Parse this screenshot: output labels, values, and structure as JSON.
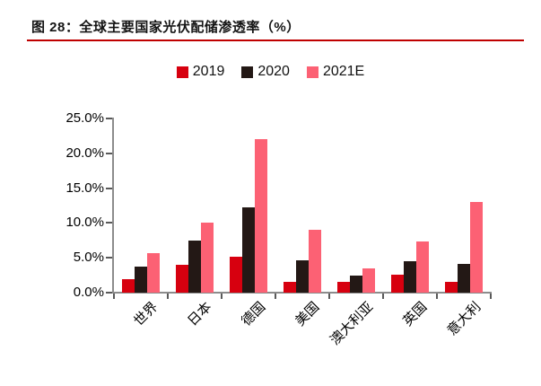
{
  "figure": {
    "title": "图 28：全球主要国家光伏配储渗透率（%）"
  },
  "colors": {
    "title_underline": "#bf0000",
    "axis": "#8c8c8c",
    "tick": "#595959",
    "text": "#000000"
  },
  "chart_data": {
    "type": "bar",
    "title": "全球主要国家光伏配储渗透率（%）",
    "categories": [
      "世界",
      "日本",
      "德国",
      "美国",
      "澳大利亚",
      "英国",
      "意大利"
    ],
    "series": [
      {
        "name": "2019",
        "color": "#d7000f",
        "values": [
          2.0,
          4.0,
          5.1,
          1.5,
          1.5,
          2.6,
          1.5
        ]
      },
      {
        "name": "2020",
        "color": "#231815",
        "values": [
          3.8,
          7.5,
          12.3,
          4.6,
          2.5,
          4.5,
          4.1
        ]
      },
      {
        "name": "2021E",
        "color": "#fc6174",
        "values": [
          5.7,
          10.0,
          22.1,
          9.0,
          3.5,
          7.3,
          13.0
        ]
      }
    ],
    "xlabel": "",
    "ylabel": "",
    "ylim": [
      0,
      25
    ],
    "ytick_labels": [
      "0.0%",
      "5.0%",
      "10.0%",
      "15.0%",
      "20.0%",
      "25.0%"
    ],
    "legend_position": "top",
    "grid": false
  }
}
